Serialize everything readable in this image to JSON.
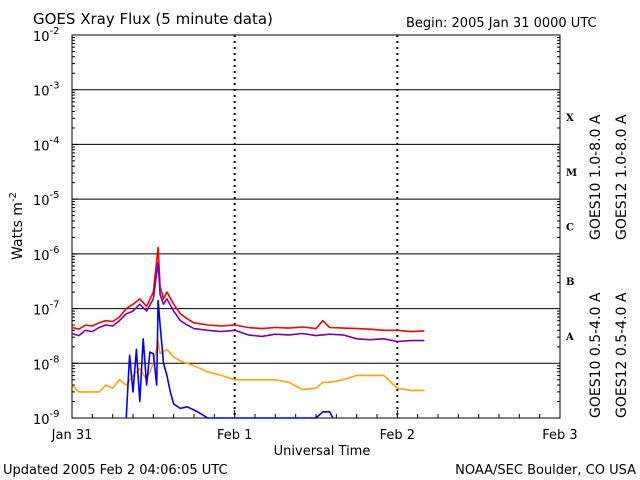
{
  "header": {
    "title": "GOES Xray Flux (5 minute data)",
    "begin": "Begin:  2005 Jan 31 0000 UTC"
  },
  "footer": {
    "updated": "Updated 2005 Feb  2 04:06:05 UTC",
    "credit": "NOAA/SEC Boulder, CO USA"
  },
  "chart_data": {
    "type": "line",
    "title": "GOES Xray Flux (5 minute data)",
    "xlabel": "Universal Time",
    "ylabel": "Watts m",
    "ylabel_superscript": "-2",
    "yscale": "log",
    "ylim": [
      1e-09,
      0.01
    ],
    "xlim": [
      0,
      72
    ],
    "x_unit": "hours since 2005 Jan 31 0000 UTC",
    "x_ticks": [
      {
        "hour": 0,
        "label": "Jan 31"
      },
      {
        "hour": 24,
        "label": "Feb 1"
      },
      {
        "hour": 48,
        "label": "Feb 2"
      },
      {
        "hour": 72,
        "label": "Feb 3"
      }
    ],
    "y_ticks": [
      {
        "base": "10",
        "exp": "-9"
      },
      {
        "base": "10",
        "exp": "-8"
      },
      {
        "base": "10",
        "exp": "-7"
      },
      {
        "base": "10",
        "exp": "-6"
      },
      {
        "base": "10",
        "exp": "-5"
      },
      {
        "base": "10",
        "exp": "-4"
      },
      {
        "base": "10",
        "exp": "-3"
      },
      {
        "base": "10",
        "exp": "-2"
      }
    ],
    "flare_classes": [
      {
        "label": "A",
        "exp": -8
      },
      {
        "label": "B",
        "exp": -7
      },
      {
        "label": "C",
        "exp": -6
      },
      {
        "label": "M",
        "exp": -5
      },
      {
        "label": "X",
        "exp": -4
      }
    ],
    "grid": "horizontal lines at each decade; dashed verticals at day boundaries",
    "legend_placement": "right, vertical",
    "series": [
      {
        "name": "GOES12 1.0-8.0 A",
        "color": "#ff0000",
        "points": [
          [
            0,
            4.5e-08
          ],
          [
            1,
            4.2e-08
          ],
          [
            2,
            5e-08
          ],
          [
            3,
            4.8e-08
          ],
          [
            4,
            5.5e-08
          ],
          [
            5,
            6e-08
          ],
          [
            6,
            5.8e-08
          ],
          [
            7,
            7e-08
          ],
          [
            8,
            1e-07
          ],
          [
            9,
            1.2e-07
          ],
          [
            10,
            1.5e-07
          ],
          [
            11,
            1.1e-07
          ],
          [
            12,
            2e-07
          ],
          [
            12.7,
            1.3e-06
          ],
          [
            13,
            2.5e-07
          ],
          [
            13.5,
            1.5e-07
          ],
          [
            14,
            2e-07
          ],
          [
            15,
            1.2e-07
          ],
          [
            16,
            8e-08
          ],
          [
            17,
            6.5e-08
          ],
          [
            18,
            5.5e-08
          ],
          [
            20,
            5e-08
          ],
          [
            22,
            4.8e-08
          ],
          [
            24,
            5e-08
          ],
          [
            26,
            4.5e-08
          ],
          [
            28,
            4.3e-08
          ],
          [
            30,
            4.5e-08
          ],
          [
            32,
            4.4e-08
          ],
          [
            34,
            4.6e-08
          ],
          [
            36,
            4.3e-08
          ],
          [
            37,
            6e-08
          ],
          [
            38,
            4.5e-08
          ],
          [
            40,
            4.4e-08
          ],
          [
            42,
            4.3e-08
          ],
          [
            44,
            4.2e-08
          ],
          [
            46,
            4e-08
          ],
          [
            48,
            4e-08
          ],
          [
            50,
            3.8e-08
          ],
          [
            52,
            3.9e-08
          ]
        ]
      },
      {
        "name": "GOES10 1.0-8.0 A",
        "color": "#7b00b4",
        "points": [
          [
            0,
            3.5e-08
          ],
          [
            1,
            3.2e-08
          ],
          [
            2,
            4e-08
          ],
          [
            3,
            3.8e-08
          ],
          [
            4,
            4.5e-08
          ],
          [
            5,
            5e-08
          ],
          [
            6,
            4.8e-08
          ],
          [
            7,
            6e-08
          ],
          [
            8,
            8e-08
          ],
          [
            9,
            9e-08
          ],
          [
            10,
            1.2e-07
          ],
          [
            11,
            9e-08
          ],
          [
            12,
            1.5e-07
          ],
          [
            12.7,
            7e-07
          ],
          [
            13,
            1.8e-07
          ],
          [
            13.5,
            1.2e-07
          ],
          [
            14,
            1.5e-07
          ],
          [
            15,
            9e-08
          ],
          [
            16,
            6e-08
          ],
          [
            17,
            5e-08
          ],
          [
            18,
            4.3e-08
          ],
          [
            20,
            4e-08
          ],
          [
            22,
            3.8e-08
          ],
          [
            24,
            4e-08
          ],
          [
            26,
            3.3e-08
          ],
          [
            28,
            3.1e-08
          ],
          [
            30,
            3.4e-08
          ],
          [
            32,
            3.3e-08
          ],
          [
            34,
            3.5e-08
          ],
          [
            36,
            3.2e-08
          ],
          [
            38,
            3.4e-08
          ],
          [
            40,
            3.3e-08
          ],
          [
            42,
            2.8e-08
          ],
          [
            44,
            2.7e-08
          ],
          [
            46,
            2.8e-08
          ],
          [
            48,
            2.5e-08
          ],
          [
            50,
            2.6e-08
          ],
          [
            52,
            2.6e-08
          ]
        ]
      },
      {
        "name": "GOES10 0.5-4.0 A",
        "color": "#ffa500",
        "points": [
          [
            0,
            4e-09
          ],
          [
            1,
            3e-09
          ],
          [
            2,
            3e-09
          ],
          [
            4,
            3e-09
          ],
          [
            5,
            4e-09
          ],
          [
            6,
            3.5e-09
          ],
          [
            7,
            5e-09
          ],
          [
            8,
            4e-09
          ],
          [
            9,
            6e-09
          ],
          [
            10,
            8e-09
          ],
          [
            11,
            5e-09
          ],
          [
            12,
            1e-08
          ],
          [
            12.7,
            2.5e-08
          ],
          [
            13,
            1.5e-08
          ],
          [
            14,
            1.8e-08
          ],
          [
            15,
            1.3e-08
          ],
          [
            16,
            1.1e-08
          ],
          [
            18,
            9e-09
          ],
          [
            20,
            7e-09
          ],
          [
            22,
            6e-09
          ],
          [
            24,
            5e-09
          ],
          [
            26,
            5e-09
          ],
          [
            30,
            5e-09
          ],
          [
            32,
            4.5e-09
          ],
          [
            34,
            3.3e-09
          ],
          [
            36,
            3.5e-09
          ],
          [
            37,
            4.5e-09
          ],
          [
            38,
            4.5e-09
          ],
          [
            40,
            5e-09
          ],
          [
            42,
            6e-09
          ],
          [
            44,
            6e-09
          ],
          [
            46,
            6e-09
          ],
          [
            48,
            3.5e-09
          ],
          [
            50,
            3.2e-09
          ],
          [
            52,
            3.2e-09
          ]
        ]
      },
      {
        "name": "GOES12 0.5-4.0 A",
        "color": "#0000ff",
        "points": [
          [
            8,
            1e-09
          ],
          [
            8.5,
            1.4e-08
          ],
          [
            9,
            3e-09
          ],
          [
            9.5,
            1.8e-08
          ],
          [
            10,
            2e-09
          ],
          [
            10.5,
            2.8e-08
          ],
          [
            11,
            4e-09
          ],
          [
            11.5,
            1.6e-08
          ],
          [
            12,
            1.5e-08
          ],
          [
            12.5,
            4e-09
          ],
          [
            12.7,
            1.4e-07
          ],
          [
            13,
            5e-08
          ],
          [
            13.5,
            1e-08
          ],
          [
            14,
            6e-09
          ],
          [
            14.5,
            3e-09
          ],
          [
            15,
            1.8e-09
          ],
          [
            16,
            1.5e-09
          ],
          [
            17,
            1.6e-09
          ],
          [
            18,
            1.4e-09
          ],
          [
            19,
            1.2e-09
          ],
          [
            20,
            1e-09
          ],
          [
            36,
            1e-09
          ],
          [
            37,
            1.3e-09
          ],
          [
            38,
            1.3e-09
          ],
          [
            38.5,
            1e-09
          ]
        ]
      }
    ]
  }
}
